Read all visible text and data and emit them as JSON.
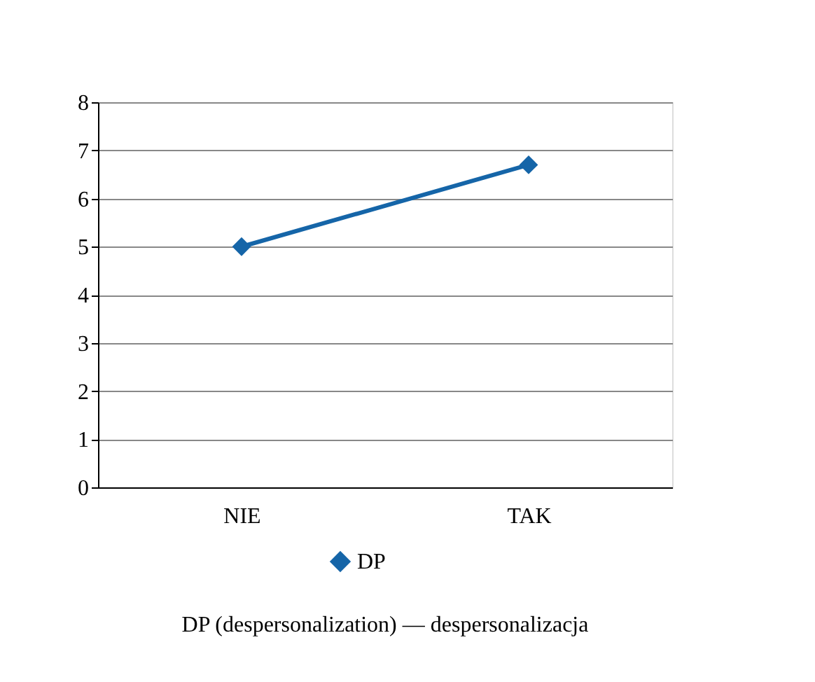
{
  "chart_data": {
    "type": "line",
    "categories": [
      "NIE",
      "TAK"
    ],
    "series": [
      {
        "name": "DP",
        "color": "#1565a8",
        "values": [
          5.0,
          6.7
        ]
      }
    ],
    "ylim": [
      0,
      8
    ],
    "yticks": [
      0,
      1,
      2,
      3,
      4,
      5,
      6,
      7,
      8
    ],
    "grid": "y",
    "legend": "bottom",
    "marker": "diamond",
    "line_style": "solid",
    "annotations": [
      "DP (despersonalization) — despersonalizacja"
    ]
  }
}
